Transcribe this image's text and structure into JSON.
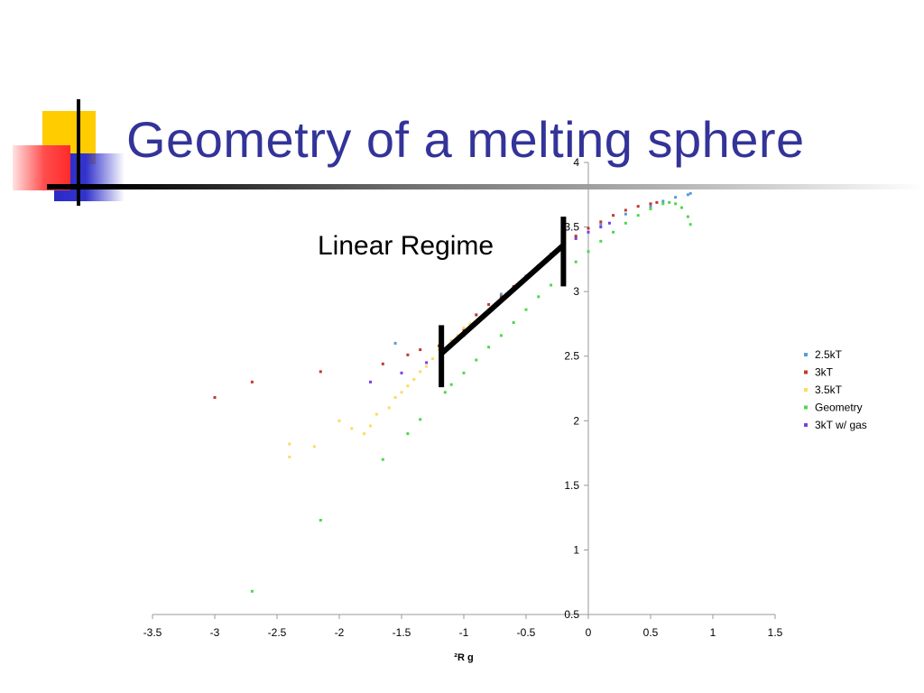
{
  "slide": {
    "title": "Geometry of a melting sphere",
    "annotation": "Linear Regime"
  },
  "chart_data": {
    "type": "scatter",
    "title": "",
    "xlabel": "²R g",
    "ylabel": "",
    "xlim": [
      -3.5,
      1.5
    ],
    "ylim": [
      0.5,
      4
    ],
    "x_ticks": [
      "-3.5",
      "-3",
      "-2.5",
      "-2",
      "-1.5",
      "-1",
      "-0.5",
      "0",
      "0.5",
      "1",
      "1.5"
    ],
    "y_ticks": [
      "0.5",
      "1",
      "1.5",
      "2",
      "2.5",
      "3",
      "3.5",
      "4"
    ],
    "legend_position": "right",
    "grid": false,
    "series": [
      {
        "name": "2.5kT",
        "color": "#5b9bd5",
        "points": [
          [
            -1.55,
            2.6
          ],
          [
            -1.05,
            2.64
          ],
          [
            -0.9,
            2.82
          ],
          [
            -0.7,
            2.98
          ],
          [
            -0.5,
            3.12
          ],
          [
            -0.3,
            3.28
          ],
          [
            -0.1,
            3.42
          ],
          [
            0.1,
            3.52
          ],
          [
            0.3,
            3.6
          ],
          [
            0.5,
            3.66
          ],
          [
            0.6,
            3.7
          ],
          [
            0.7,
            3.73
          ],
          [
            0.8,
            3.75
          ],
          [
            0.82,
            3.76
          ]
        ]
      },
      {
        "name": "3kT",
        "color": "#c0392b",
        "points": [
          [
            -3.0,
            2.18
          ],
          [
            -2.7,
            2.3
          ],
          [
            -2.15,
            2.38
          ],
          [
            -1.65,
            2.44
          ],
          [
            -1.45,
            2.51
          ],
          [
            -1.35,
            2.55
          ],
          [
            -1.2,
            2.58
          ],
          [
            -1.0,
            2.7
          ],
          [
            -0.9,
            2.82
          ],
          [
            -0.8,
            2.9
          ],
          [
            -0.7,
            2.96
          ],
          [
            -0.6,
            3.04
          ],
          [
            -0.5,
            3.12
          ],
          [
            -0.4,
            3.2
          ],
          [
            -0.3,
            3.28
          ],
          [
            -0.2,
            3.37
          ],
          [
            -0.1,
            3.43
          ],
          [
            0.0,
            3.49
          ],
          [
            0.1,
            3.54
          ],
          [
            0.2,
            3.59
          ],
          [
            0.3,
            3.63
          ],
          [
            0.4,
            3.66
          ],
          [
            0.5,
            3.68
          ],
          [
            0.55,
            3.69
          ]
        ]
      },
      {
        "name": "3.5kT",
        "color": "#ffd966",
        "points": [
          [
            -2.4,
            1.72
          ],
          [
            -2.4,
            1.82
          ],
          [
            -2.2,
            1.8
          ],
          [
            -2.0,
            2.0
          ],
          [
            -1.9,
            1.94
          ],
          [
            -1.8,
            1.9
          ],
          [
            -1.75,
            1.96
          ],
          [
            -1.7,
            2.05
          ],
          [
            -1.6,
            2.1
          ],
          [
            -1.55,
            2.18
          ],
          [
            -1.5,
            2.22
          ],
          [
            -1.45,
            2.27
          ],
          [
            -1.4,
            2.32
          ],
          [
            -1.35,
            2.38
          ],
          [
            -1.3,
            2.42
          ],
          [
            -1.25,
            2.48
          ],
          [
            -1.2,
            2.55
          ],
          [
            -1.1,
            2.62
          ],
          [
            -1.05,
            2.66
          ],
          [
            -1.0,
            2.72
          ],
          [
            -0.95,
            2.75
          ],
          [
            -0.9,
            2.77
          ]
        ]
      },
      {
        "name": "Geometry",
        "color": "#4cd94c",
        "points": [
          [
            -2.7,
            0.68
          ],
          [
            -2.15,
            1.23
          ],
          [
            -1.65,
            1.7
          ],
          [
            -1.45,
            1.9
          ],
          [
            -1.35,
            2.01
          ],
          [
            -1.15,
            2.22
          ],
          [
            -1.1,
            2.28
          ],
          [
            -1.0,
            2.37
          ],
          [
            -0.9,
            2.47
          ],
          [
            -0.8,
            2.57
          ],
          [
            -0.7,
            2.66
          ],
          [
            -0.6,
            2.76
          ],
          [
            -0.5,
            2.86
          ],
          [
            -0.4,
            2.96
          ],
          [
            -0.3,
            3.05
          ],
          [
            -0.2,
            3.14
          ],
          [
            -0.1,
            3.23
          ],
          [
            0.0,
            3.31
          ],
          [
            0.1,
            3.39
          ],
          [
            0.2,
            3.46
          ],
          [
            0.3,
            3.53
          ],
          [
            0.4,
            3.59
          ],
          [
            0.5,
            3.64
          ],
          [
            0.6,
            3.68
          ],
          [
            0.65,
            3.69
          ],
          [
            0.7,
            3.68
          ],
          [
            0.75,
            3.65
          ],
          [
            0.8,
            3.58
          ],
          [
            0.82,
            3.52
          ]
        ]
      },
      {
        "name": "3kT w/ gas",
        "color": "#7b3fe4",
        "points": [
          [
            -1.75,
            2.3
          ],
          [
            -1.5,
            2.37
          ],
          [
            -1.3,
            2.45
          ],
          [
            -1.15,
            2.55
          ],
          [
            -1.0,
            2.66
          ],
          [
            -0.9,
            2.75
          ],
          [
            -0.8,
            2.85
          ],
          [
            -0.7,
            2.93
          ],
          [
            -0.6,
            3.02
          ],
          [
            -0.5,
            3.12
          ],
          [
            -0.4,
            3.2
          ],
          [
            -0.3,
            3.29
          ],
          [
            -0.2,
            3.36
          ],
          [
            -0.1,
            3.41
          ],
          [
            0.0,
            3.46
          ],
          [
            0.1,
            3.5
          ],
          [
            0.17,
            3.53
          ]
        ]
      }
    ]
  }
}
